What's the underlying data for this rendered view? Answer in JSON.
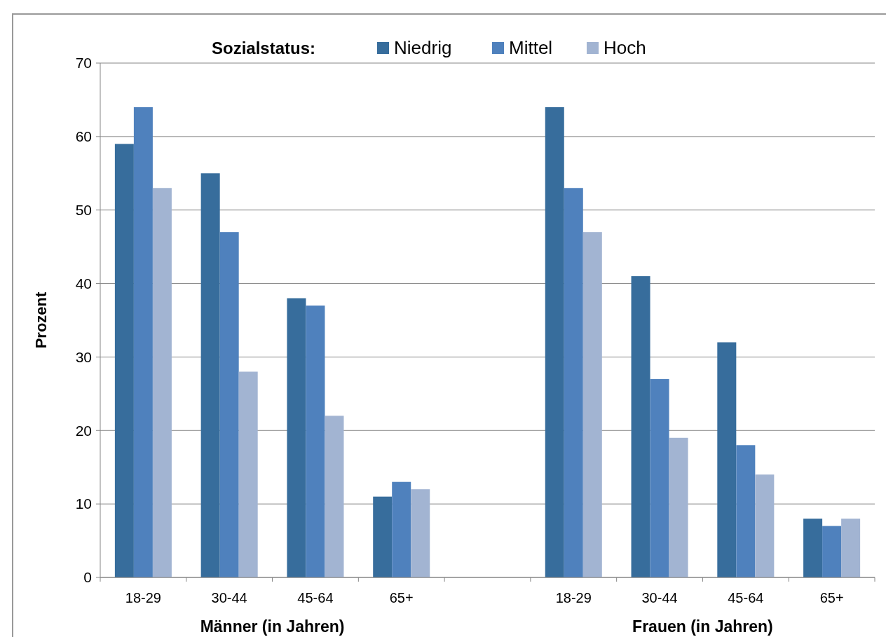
{
  "chart_data": {
    "type": "bar",
    "ylabel": "Prozent",
    "xlabel": "Männer (in Jahren)",
    "annotations": [
      "Frauen (in Jahren)"
    ],
    "legend_title": "Sozialstatus:",
    "legend": "top",
    "categories": [
      "18-29",
      "30-44",
      "45-64",
      "65+",
      null,
      "18-29",
      "30-44",
      "45-64",
      "65+"
    ],
    "series": [
      {
        "name": "Niedrig",
        "color": "#376d9c",
        "values": [
          59,
          55,
          38,
          11,
          null,
          64,
          41,
          32,
          8
        ]
      },
      {
        "name": "Mittel",
        "color": "#4f81bd",
        "values": [
          64,
          47,
          37,
          13,
          null,
          53,
          27,
          18,
          7
        ]
      },
      {
        "name": "Hoch",
        "color": "#a2b4d2",
        "values": [
          53,
          28,
          22,
          12,
          null,
          47,
          19,
          14,
          8
        ]
      }
    ],
    "ylim": [
      0,
      70
    ],
    "yticks": [
      0,
      10,
      20,
      30,
      40,
      50,
      60,
      70
    ],
    "grid": "y"
  }
}
